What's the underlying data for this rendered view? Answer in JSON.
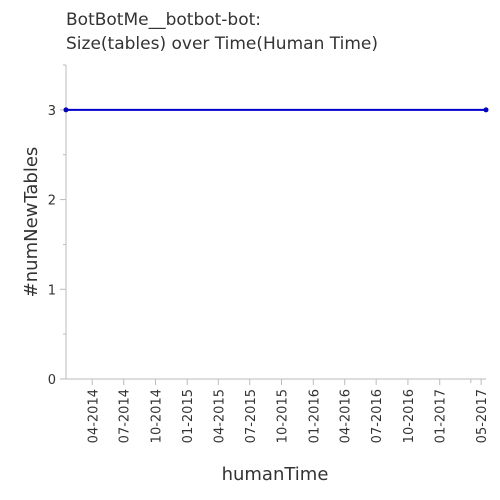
{
  "chart_data": {
    "type": "line",
    "title": [
      "BotBotMe__botbot-bot:",
      "Size(tables) over Time(Human Time)"
    ],
    "xlabel": "humanTime",
    "ylabel": "#numNewTables",
    "x_tick_labels": [
      "04-2014",
      "07-2014",
      "10-2014",
      "01-2015",
      "04-2015",
      "07-2015",
      "10-2015",
      "01-2016",
      "04-2016",
      "07-2016",
      "10-2016",
      "01-2017",
      "05-2017"
    ],
    "x_ticks": [
      "2014-04",
      "2014-07",
      "2014-10",
      "2015-01",
      "2015-04",
      "2015-07",
      "2015-10",
      "2016-01",
      "2016-04",
      "2016-07",
      "2016-10",
      "2017-01",
      "2017-05"
    ],
    "y_ticks": [
      0,
      1,
      2,
      3
    ],
    "ylim": [
      0,
      3.5
    ],
    "xlim": [
      "2014-01-15",
      "2017-05-15"
    ],
    "series": [
      {
        "color": "#0000cc",
        "points": [
          {
            "x": "2014-01-15",
            "y": 3
          },
          {
            "x": "2017-05-15",
            "y": 3
          }
        ]
      }
    ]
  }
}
